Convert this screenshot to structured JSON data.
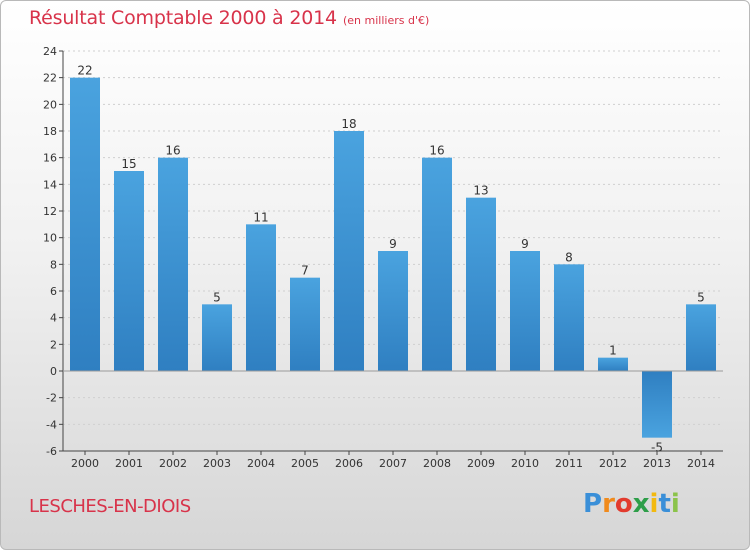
{
  "chart_data": {
    "type": "bar",
    "title": "Résultat Comptable 2000 à 2014",
    "subtitle": "(en milliers d'€)",
    "categories": [
      "2000",
      "2001",
      "2002",
      "2003",
      "2004",
      "2005",
      "2006",
      "2007",
      "2008",
      "2009",
      "2010",
      "2011",
      "2012",
      "2013",
      "2014"
    ],
    "values": [
      22,
      15,
      16,
      5,
      11,
      7,
      18,
      9,
      16,
      13,
      9,
      8,
      1,
      -5,
      5
    ],
    "xlabel": "",
    "ylabel": "",
    "ylim": [
      -6,
      24
    ],
    "yticks": [
      -6,
      -4,
      -2,
      0,
      2,
      4,
      6,
      8,
      10,
      12,
      14,
      16,
      18,
      20,
      22,
      24
    ],
    "grid": true,
    "bar_color": "#4aa3df",
    "bar_color_dark": "#2f7fc1"
  },
  "commune": "LESCHES-EN-DIOIS",
  "logo": {
    "letters": [
      "P",
      "r",
      "o",
      "x",
      "i",
      "t",
      "i"
    ],
    "colors": [
      "#3a8fd8",
      "#f08a1c",
      "#e23b2e",
      "#2e9e49",
      "#f2b90f",
      "#3a8fd8",
      "#8bc34a"
    ]
  }
}
